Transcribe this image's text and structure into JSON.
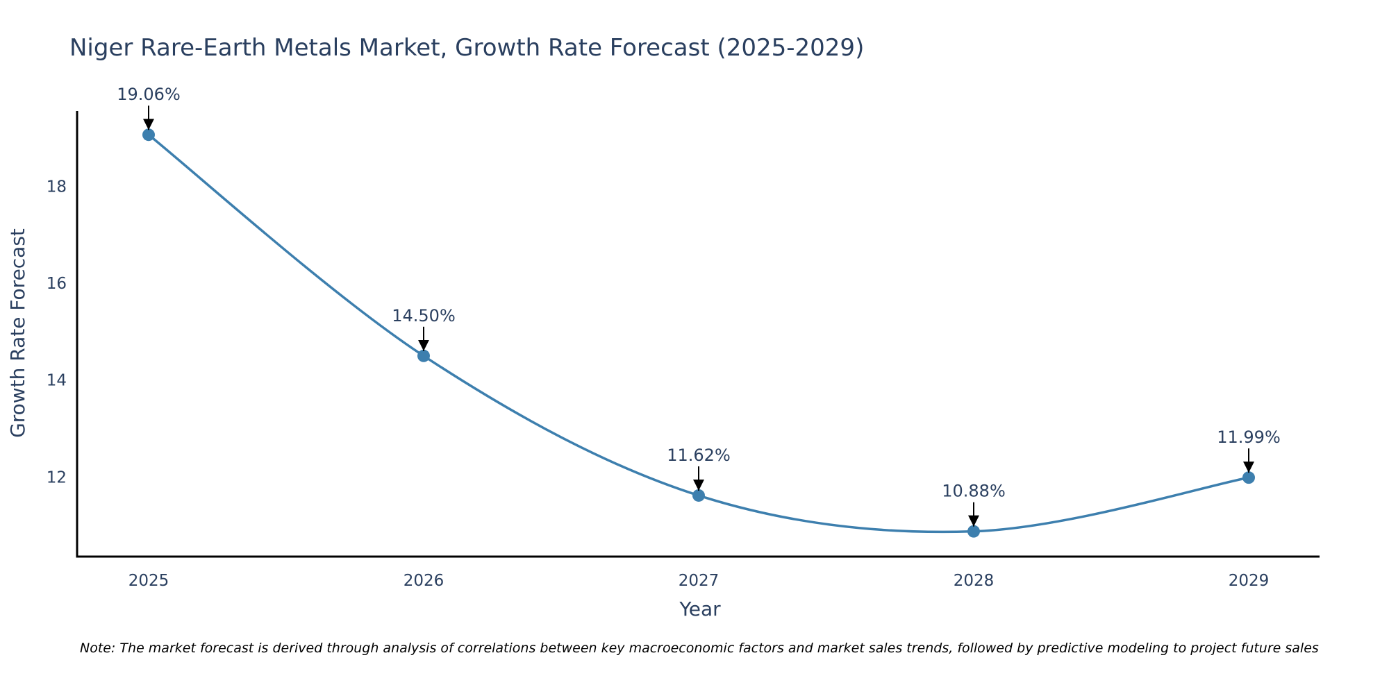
{
  "chart_data": {
    "type": "line",
    "title": "Niger Rare-Earth Metals Market, Growth Rate Forecast (2025-2029)",
    "xlabel": "Year",
    "ylabel": "Growth Rate Forecast",
    "categories": [
      "2025",
      "2026",
      "2027",
      "2028",
      "2029"
    ],
    "values": [
      19.06,
      14.5,
      11.62,
      10.88,
      11.99
    ],
    "data_labels": [
      "19.06%",
      "14.50%",
      "11.62%",
      "10.88%",
      "11.99%"
    ],
    "yticks": [
      12,
      14,
      16,
      18
    ],
    "ylim": [
      10.36,
      19.55
    ],
    "grid": false,
    "line_shape": "spline",
    "colors": {
      "line": "#3d7fae",
      "marker": "#3d7fae",
      "axis": "#000000",
      "arrow": "#000000",
      "text": "#2a3f5f"
    },
    "note": "Note: The market forecast is derived through analysis of correlations between key macroeconomic factors and market sales trends, followed by predictive modeling to project future sales"
  }
}
